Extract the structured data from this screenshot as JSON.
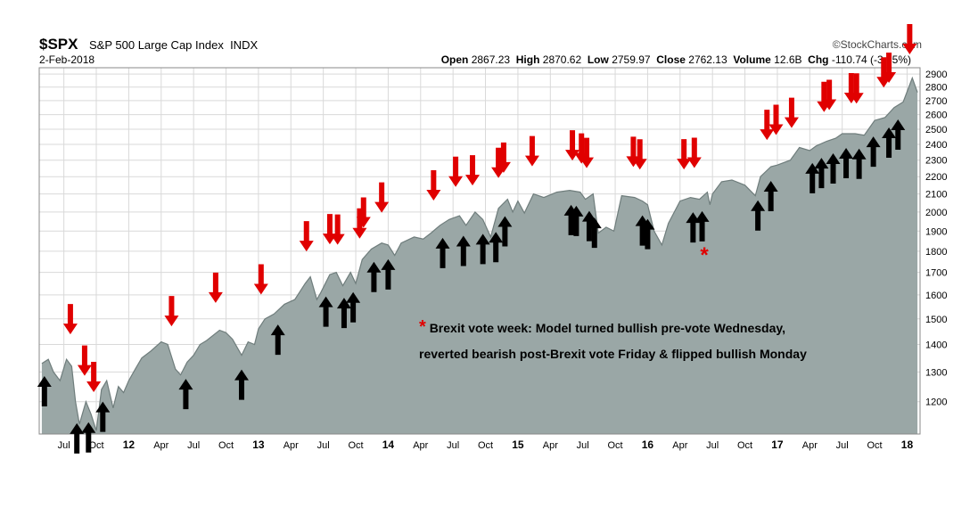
{
  "header": {
    "ticker": "$SPX",
    "name": "S&P 500 Large Cap Index",
    "exchange": "INDX",
    "date": "2-Feb-2018",
    "brand": "©StockCharts.com",
    "open_label": "Open",
    "open": "2867.23",
    "high_label": "High",
    "high": "2870.62",
    "low_label": "Low",
    "low": "2759.97",
    "close_label": "Close",
    "close": "2762.13",
    "volume_label": "Volume",
    "volume": "12.6B",
    "chg_label": "Chg",
    "chg": "-110.74 (-3.85%)"
  },
  "annotation": {
    "star": "*",
    "line1": "Brexit vote week: Model turned bullish pre-vote Wednesday,",
    "line2": "reverted bearish post-Brexit vote Friday & flipped bullish Monday"
  },
  "colors": {
    "area": "#9aa7a6",
    "area_line": "#6f7d7c",
    "bearish_arrow": "#e00000",
    "bullish_arrow": "#000000",
    "grid": "#d9d9d9"
  },
  "chart_data": {
    "type": "area",
    "title": "$SPX S&P 500 Large Cap Index INDX",
    "xlabel": "",
    "ylabel": "",
    "ylim": [
      1100,
      2950
    ],
    "y_scale": "log",
    "grid": true,
    "y_ticks": [
      1200,
      1300,
      1400,
      1500,
      1600,
      1700,
      1800,
      1900,
      2000,
      2100,
      2200,
      2300,
      2400,
      2500,
      2600,
      2700,
      2800,
      2900
    ],
    "x_ticks": [
      {
        "label": "Jul",
        "t": 2011.5,
        "bold": false
      },
      {
        "label": "Oct",
        "t": 2011.75,
        "bold": false
      },
      {
        "label": "12",
        "t": 2012.0,
        "bold": true
      },
      {
        "label": "Apr",
        "t": 2012.25,
        "bold": false
      },
      {
        "label": "Jul",
        "t": 2012.5,
        "bold": false
      },
      {
        "label": "Oct",
        "t": 2012.75,
        "bold": false
      },
      {
        "label": "13",
        "t": 2013.0,
        "bold": true
      },
      {
        "label": "Apr",
        "t": 2013.25,
        "bold": false
      },
      {
        "label": "Jul",
        "t": 2013.5,
        "bold": false
      },
      {
        "label": "Oct",
        "t": 2013.75,
        "bold": false
      },
      {
        "label": "14",
        "t": 2014.0,
        "bold": true
      },
      {
        "label": "Apr",
        "t": 2014.25,
        "bold": false
      },
      {
        "label": "Jul",
        "t": 2014.5,
        "bold": false
      },
      {
        "label": "Oct",
        "t": 2014.75,
        "bold": false
      },
      {
        "label": "15",
        "t": 2015.0,
        "bold": true
      },
      {
        "label": "Apr",
        "t": 2015.25,
        "bold": false
      },
      {
        "label": "Jul",
        "t": 2015.5,
        "bold": false
      },
      {
        "label": "Oct",
        "t": 2015.75,
        "bold": false
      },
      {
        "label": "16",
        "t": 2016.0,
        "bold": true
      },
      {
        "label": "Apr",
        "t": 2016.25,
        "bold": false
      },
      {
        "label": "Jul",
        "t": 2016.5,
        "bold": false
      },
      {
        "label": "Oct",
        "t": 2016.75,
        "bold": false
      },
      {
        "label": "17",
        "t": 2017.0,
        "bold": true
      },
      {
        "label": "Apr",
        "t": 2017.25,
        "bold": false
      },
      {
        "label": "Jul",
        "t": 2017.5,
        "bold": false
      },
      {
        "label": "Oct",
        "t": 2017.75,
        "bold": false
      },
      {
        "label": "18",
        "t": 2018.0,
        "bold": true
      }
    ],
    "series": [
      {
        "values": [
          [
            2011.33,
            1330
          ],
          [
            2011.38,
            1345
          ],
          [
            2011.42,
            1300
          ],
          [
            2011.47,
            1270
          ],
          [
            2011.52,
            1345
          ],
          [
            2011.56,
            1320
          ],
          [
            2011.59,
            1200
          ],
          [
            2011.62,
            1130
          ],
          [
            2011.67,
            1200
          ],
          [
            2011.71,
            1160
          ],
          [
            2011.75,
            1110
          ],
          [
            2011.79,
            1240
          ],
          [
            2011.83,
            1270
          ],
          [
            2011.88,
            1180
          ],
          [
            2011.92,
            1250
          ],
          [
            2011.96,
            1230
          ],
          [
            2012.0,
            1270
          ],
          [
            2012.05,
            1310
          ],
          [
            2012.1,
            1350
          ],
          [
            2012.17,
            1375
          ],
          [
            2012.25,
            1410
          ],
          [
            2012.3,
            1400
          ],
          [
            2012.36,
            1310
          ],
          [
            2012.4,
            1290
          ],
          [
            2012.45,
            1335
          ],
          [
            2012.5,
            1360
          ],
          [
            2012.55,
            1400
          ],
          [
            2012.6,
            1415
          ],
          [
            2012.7,
            1455
          ],
          [
            2012.75,
            1445
          ],
          [
            2012.8,
            1420
          ],
          [
            2012.87,
            1360
          ],
          [
            2012.92,
            1410
          ],
          [
            2012.97,
            1400
          ],
          [
            2013.0,
            1460
          ],
          [
            2013.05,
            1500
          ],
          [
            2013.12,
            1520
          ],
          [
            2013.2,
            1560
          ],
          [
            2013.28,
            1580
          ],
          [
            2013.36,
            1650
          ],
          [
            2013.4,
            1680
          ],
          [
            2013.45,
            1580
          ],
          [
            2013.48,
            1610
          ],
          [
            2013.55,
            1690
          ],
          [
            2013.6,
            1700
          ],
          [
            2013.65,
            1640
          ],
          [
            2013.71,
            1700
          ],
          [
            2013.75,
            1650
          ],
          [
            2013.8,
            1760
          ],
          [
            2013.87,
            1810
          ],
          [
            2013.95,
            1840
          ],
          [
            2014.0,
            1830
          ],
          [
            2014.05,
            1780
          ],
          [
            2014.1,
            1840
          ],
          [
            2014.2,
            1870
          ],
          [
            2014.27,
            1860
          ],
          [
            2014.33,
            1890
          ],
          [
            2014.4,
            1930
          ],
          [
            2014.47,
            1960
          ],
          [
            2014.55,
            1980
          ],
          [
            2014.6,
            1930
          ],
          [
            2014.67,
            2000
          ],
          [
            2014.73,
            1960
          ],
          [
            2014.79,
            1870
          ],
          [
            2014.85,
            2020
          ],
          [
            2014.92,
            2070
          ],
          [
            2014.96,
            2000
          ],
          [
            2015.0,
            2060
          ],
          [
            2015.05,
            1995
          ],
          [
            2015.12,
            2100
          ],
          [
            2015.2,
            2080
          ],
          [
            2015.3,
            2110
          ],
          [
            2015.4,
            2120
          ],
          [
            2015.48,
            2110
          ],
          [
            2015.52,
            2070
          ],
          [
            2015.58,
            2100
          ],
          [
            2015.62,
            1890
          ],
          [
            2015.68,
            1920
          ],
          [
            2015.74,
            1900
          ],
          [
            2015.8,
            2090
          ],
          [
            2015.9,
            2080
          ],
          [
            2015.96,
            2060
          ],
          [
            2016.0,
            2040
          ],
          [
            2016.05,
            1900
          ],
          [
            2016.11,
            1830
          ],
          [
            2016.16,
            1940
          ],
          [
            2016.25,
            2060
          ],
          [
            2016.33,
            2080
          ],
          [
            2016.4,
            2070
          ],
          [
            2016.46,
            2110
          ],
          [
            2016.48,
            2040
          ],
          [
            2016.5,
            2100
          ],
          [
            2016.57,
            2170
          ],
          [
            2016.65,
            2180
          ],
          [
            2016.75,
            2150
          ],
          [
            2016.83,
            2090
          ],
          [
            2016.87,
            2200
          ],
          [
            2016.95,
            2260
          ],
          [
            2017.0,
            2270
          ],
          [
            2017.1,
            2300
          ],
          [
            2017.17,
            2380
          ],
          [
            2017.25,
            2360
          ],
          [
            2017.3,
            2390
          ],
          [
            2017.38,
            2420
          ],
          [
            2017.45,
            2440
          ],
          [
            2017.5,
            2470
          ],
          [
            2017.6,
            2470
          ],
          [
            2017.67,
            2460
          ],
          [
            2017.75,
            2560
          ],
          [
            2017.83,
            2580
          ],
          [
            2017.9,
            2650
          ],
          [
            2017.97,
            2690
          ],
          [
            2018.04,
            2870
          ],
          [
            2018.08,
            2760
          ]
        ]
      }
    ],
    "signals": {
      "bearish": [
        2011.55,
        2011.66,
        2011.73,
        2012.33,
        2012.67,
        2013.02,
        2013.37,
        2013.55,
        2013.61,
        2013.78,
        2013.81,
        2013.95,
        2014.35,
        2014.52,
        2014.65,
        2014.85,
        2014.89,
        2015.11,
        2015.42,
        2015.49,
        2015.53,
        2015.89,
        2015.94,
        2016.28,
        2016.36,
        2016.92,
        2016.99,
        2017.11,
        2017.36,
        2017.4,
        2017.57,
        2017.61,
        2017.82,
        2017.86,
        2018.02
      ],
      "bullish": [
        2011.35,
        2011.6,
        2011.69,
        2011.8,
        2012.44,
        2012.87,
        2013.15,
        2013.52,
        2013.66,
        2013.73,
        2013.89,
        2014.0,
        2014.42,
        2014.58,
        2014.73,
        2014.83,
        2014.9,
        2015.41,
        2015.45,
        2015.55,
        2015.59,
        2015.96,
        2016.0,
        2016.35,
        2016.42,
        2016.85,
        2016.95,
        2017.27,
        2017.34,
        2017.43,
        2017.53,
        2017.63,
        2017.74,
        2017.86,
        2017.93
      ]
    }
  }
}
